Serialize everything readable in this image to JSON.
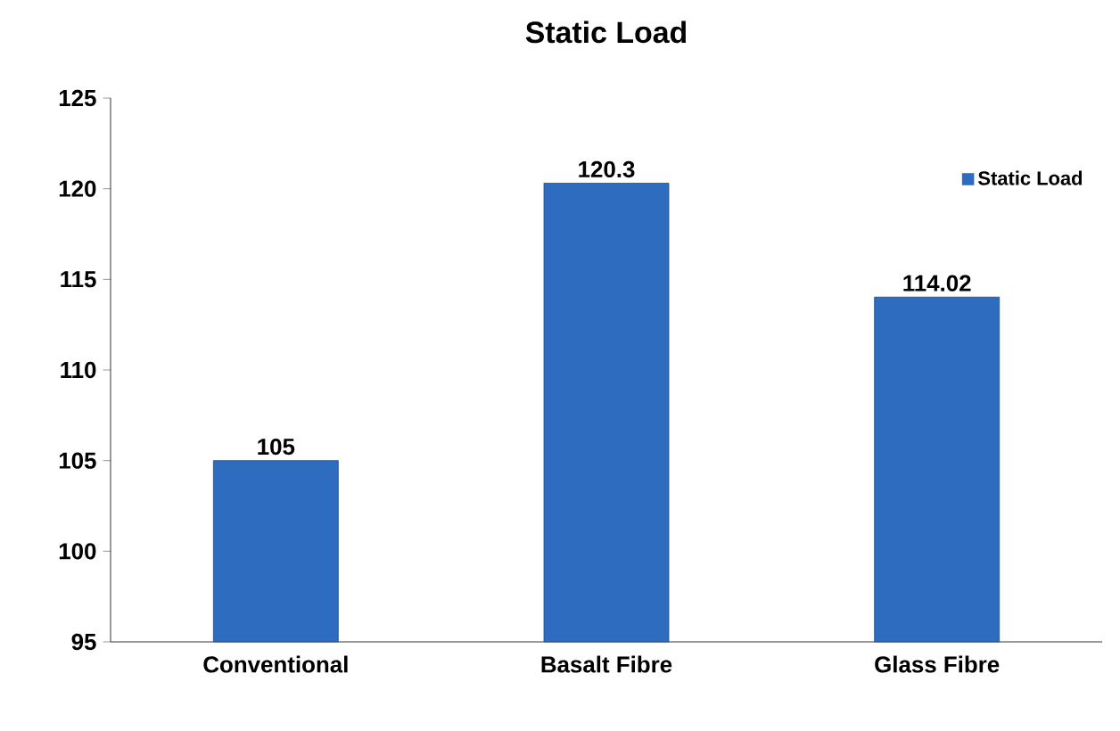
{
  "chart_data": {
    "type": "bar",
    "title": "Static Load",
    "categories": [
      "Conventional",
      "Basalt Fibre",
      "Glass Fibre"
    ],
    "series": [
      {
        "name": "Static Load",
        "color": "#2e6cbf",
        "values": [
          105,
          120.3,
          114.02
        ]
      }
    ],
    "ylim": [
      95,
      125
    ],
    "yticks": [
      95,
      100,
      105,
      110,
      115,
      120,
      125
    ],
    "data_labels": true,
    "legend": "top right",
    "grid": false
  }
}
